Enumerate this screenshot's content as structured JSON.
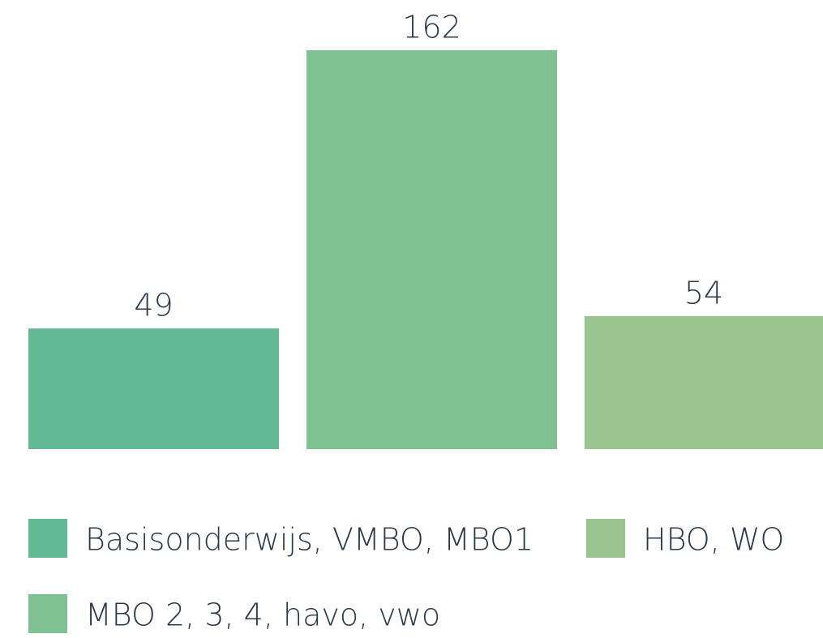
{
  "chart_data": {
    "type": "bar",
    "series": [
      {
        "name": "Basisonderwijs, VMBO, MBO1",
        "color": "#62b994",
        "values": [
          49
        ]
      },
      {
        "name": "MBO 2, 3, 4, havo, vwo",
        "color": "#7fc292",
        "values": [
          162
        ]
      },
      {
        "name": "HBO, WO",
        "color": "#9bc58e",
        "values": [
          54
        ]
      }
    ],
    "legend": "bottom"
  }
}
